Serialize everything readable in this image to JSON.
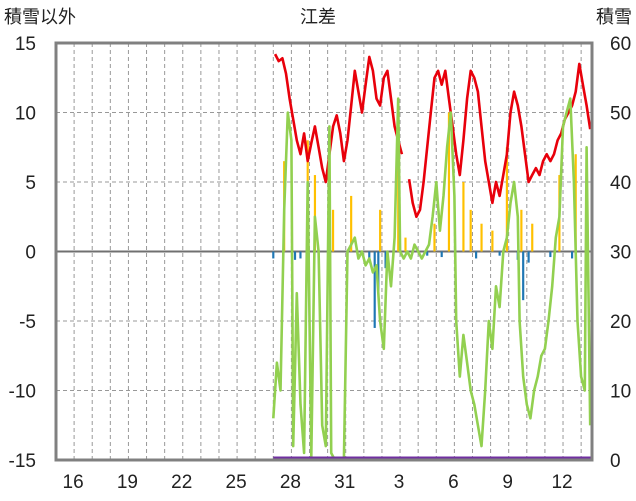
{
  "chart_data": {
    "type": "bar",
    "title": "江差",
    "left_axis_label": "積雪以外",
    "right_axis_label": "積雪",
    "left_ylim": [
      -15,
      15
    ],
    "left_yticks": [
      15,
      10,
      5,
      0,
      -5,
      -10,
      -15
    ],
    "right_ylim": [
      0,
      60
    ],
    "right_yticks": [
      60,
      50,
      40,
      30,
      20,
      10,
      0
    ],
    "x_tick_labels": [
      "16",
      "19",
      "22",
      "25",
      "28",
      "31",
      "3",
      "6",
      "9",
      "12"
    ],
    "x_tick_day_index": [
      1,
      4,
      7,
      10,
      13,
      16,
      19,
      22,
      25,
      28
    ],
    "x_range_days": [
      0,
      29.6
    ],
    "grid": true,
    "colors": {
      "temperature": "#e8000b",
      "snow_depth": "#92d050",
      "precipitation": "#ffc000",
      "negative": "#1f77b4",
      "baseline": "#7030a0",
      "grid": "#999999",
      "frame": "#808080"
    },
    "series": [
      {
        "axis": "left",
        "style": "line",
        "color": "#e8000b",
        "points": [
          [
            12.1,
            14.2
          ],
          [
            12.3,
            13.7
          ],
          [
            12.5,
            13.9
          ],
          [
            12.7,
            12.8
          ],
          [
            12.9,
            11.0
          ],
          [
            13.1,
            9.5
          ],
          [
            13.3,
            8.0
          ],
          [
            13.5,
            7.0
          ],
          [
            13.7,
            8.5
          ],
          [
            13.9,
            6.5
          ],
          [
            14.1,
            7.8
          ],
          [
            14.3,
            9.0
          ],
          [
            14.5,
            7.5
          ],
          [
            14.7,
            6.0
          ],
          [
            14.9,
            5.0
          ],
          [
            15.1,
            7.0
          ],
          [
            15.3,
            9.0
          ],
          [
            15.5,
            9.8
          ],
          [
            15.7,
            8.5
          ],
          [
            15.9,
            6.5
          ],
          [
            16.1,
            8.0
          ],
          [
            16.3,
            10.5
          ],
          [
            16.5,
            13.0
          ],
          [
            16.7,
            11.5
          ],
          [
            16.9,
            10.0
          ],
          [
            17.1,
            12.0
          ],
          [
            17.3,
            14.0
          ],
          [
            17.5,
            13.0
          ],
          [
            17.7,
            11.0
          ],
          [
            17.9,
            10.5
          ],
          [
            18.1,
            12.5
          ],
          [
            18.3,
            13.0
          ],
          [
            18.5,
            11.0
          ],
          [
            18.7,
            9.0
          ],
          [
            18.9,
            8.0
          ],
          [
            19.1,
            7.0
          ]
        ]
      },
      {
        "axis": "left",
        "style": "line",
        "color": "#e8000b",
        "points": [
          [
            19.5,
            5.2
          ],
          [
            19.7,
            3.5
          ],
          [
            19.9,
            2.5
          ],
          [
            20.1,
            3.0
          ],
          [
            20.3,
            5.0
          ],
          [
            20.5,
            7.5
          ],
          [
            20.7,
            10.0
          ],
          [
            20.9,
            12.5
          ],
          [
            21.1,
            13.0
          ],
          [
            21.3,
            12.0
          ],
          [
            21.5,
            13.0
          ],
          [
            21.7,
            11.0
          ],
          [
            21.9,
            9.0
          ],
          [
            22.1,
            7.0
          ],
          [
            22.3,
            5.5
          ],
          [
            22.5,
            8.0
          ],
          [
            22.7,
            11.0
          ],
          [
            22.9,
            13.0
          ],
          [
            23.1,
            12.5
          ],
          [
            23.3,
            11.5
          ],
          [
            23.5,
            9.0
          ],
          [
            23.7,
            6.5
          ],
          [
            23.9,
            5.0
          ],
          [
            24.1,
            3.5
          ],
          [
            24.3,
            5.0
          ],
          [
            24.5,
            4.0
          ],
          [
            24.7,
            5.5
          ],
          [
            24.9,
            7.0
          ],
          [
            25.1,
            10.0
          ],
          [
            25.3,
            11.5
          ],
          [
            25.5,
            10.5
          ],
          [
            25.7,
            9.0
          ],
          [
            25.9,
            7.0
          ],
          [
            26.1,
            5.0
          ],
          [
            26.3,
            5.5
          ],
          [
            26.5,
            6.0
          ],
          [
            26.7,
            5.5
          ],
          [
            26.9,
            6.5
          ],
          [
            27.1,
            7.0
          ],
          [
            27.3,
            6.5
          ],
          [
            27.5,
            7.0
          ],
          [
            27.7,
            8.0
          ],
          [
            27.9,
            8.5
          ],
          [
            28.1,
            9.5
          ],
          [
            28.3,
            10.0
          ],
          [
            28.5,
            10.5
          ],
          [
            28.7,
            11.5
          ],
          [
            28.9,
            13.5
          ],
          [
            29.1,
            12.0
          ],
          [
            29.3,
            10.5
          ],
          [
            29.5,
            8.8
          ]
        ]
      },
      {
        "axis": "right",
        "style": "line",
        "color": "#92d050",
        "points": [
          [
            12.0,
            6.0
          ],
          [
            12.2,
            14.0
          ],
          [
            12.4,
            10.0
          ],
          [
            12.6,
            36.0
          ],
          [
            12.8,
            50.0
          ],
          [
            13.0,
            46.0
          ],
          [
            13.1,
            2.0
          ],
          [
            13.3,
            24.0
          ],
          [
            13.5,
            8.0
          ],
          [
            13.7,
            1.0
          ],
          [
            13.9,
            40.0
          ],
          [
            14.1,
            0.5
          ],
          [
            14.3,
            35.0
          ],
          [
            14.5,
            30.0
          ],
          [
            14.7,
            5.0
          ],
          [
            14.9,
            2.0
          ],
          [
            15.1,
            48.0
          ],
          [
            15.2,
            1.0
          ],
          [
            15.4,
            0.0
          ],
          [
            15.6,
            0.0
          ],
          [
            15.9,
            0.0
          ],
          [
            16.1,
            30.0
          ],
          [
            16.3,
            31.0
          ],
          [
            16.5,
            32.0
          ],
          [
            16.7,
            29.0
          ],
          [
            16.9,
            30.0
          ],
          [
            17.1,
            28.0
          ],
          [
            17.3,
            29.0
          ],
          [
            17.5,
            27.0
          ],
          [
            17.7,
            28.0
          ],
          [
            17.9,
            20.0
          ],
          [
            18.1,
            16.0
          ],
          [
            18.3,
            30.0
          ],
          [
            18.5,
            25.0
          ],
          [
            18.7,
            32.0
          ],
          [
            18.9,
            52.0
          ],
          [
            19.0,
            30.0
          ],
          [
            19.2,
            29.0
          ],
          [
            19.4,
            30.0
          ],
          [
            19.6,
            29.0
          ],
          [
            19.8,
            31.0
          ],
          [
            20.0,
            30.0
          ],
          [
            20.2,
            29.0
          ],
          [
            20.4,
            30.0
          ],
          [
            20.6,
            31.0
          ],
          [
            20.8,
            35.0
          ],
          [
            21.0,
            40.0
          ],
          [
            21.2,
            33.0
          ],
          [
            21.4,
            38.0
          ],
          [
            21.6,
            45.0
          ],
          [
            21.8,
            50.0
          ],
          [
            22.0,
            38.0
          ],
          [
            22.1,
            20.0
          ],
          [
            22.3,
            12.0
          ],
          [
            22.5,
            18.0
          ],
          [
            22.7,
            14.0
          ],
          [
            22.9,
            10.0
          ],
          [
            23.1,
            8.0
          ],
          [
            23.3,
            5.0
          ],
          [
            23.5,
            2.0
          ],
          [
            23.7,
            10.0
          ],
          [
            23.9,
            20.0
          ],
          [
            24.1,
            16.0
          ],
          [
            24.3,
            25.0
          ],
          [
            24.5,
            22.0
          ],
          [
            24.7,
            30.0
          ],
          [
            24.9,
            32.0
          ],
          [
            25.1,
            37.0
          ],
          [
            25.3,
            40.0
          ],
          [
            25.5,
            35.0
          ],
          [
            25.6,
            20.0
          ],
          [
            25.8,
            12.0
          ],
          [
            26.0,
            8.0
          ],
          [
            26.2,
            6.0
          ],
          [
            26.4,
            10.0
          ],
          [
            26.6,
            12.0
          ],
          [
            26.8,
            15.0
          ],
          [
            27.0,
            16.0
          ],
          [
            27.2,
            20.0
          ],
          [
            27.4,
            25.0
          ],
          [
            27.6,
            32.0
          ],
          [
            27.8,
            35.0
          ],
          [
            28.0,
            48.0
          ],
          [
            28.2,
            50.0
          ],
          [
            28.4,
            52.0
          ],
          [
            28.6,
            40.0
          ],
          [
            28.8,
            20.0
          ],
          [
            29.0,
            12.0
          ],
          [
            29.2,
            10.0
          ],
          [
            29.3,
            45.0
          ],
          [
            29.5,
            5.0
          ]
        ]
      }
    ],
    "bars": [
      {
        "axis": "left",
        "color": "#ffc000",
        "style": "positive",
        "items": [
          [
            12.6,
            6.5
          ],
          [
            13.9,
            8.0
          ],
          [
            14.3,
            5.5
          ],
          [
            15.3,
            3.0
          ],
          [
            16.3,
            4.0
          ],
          [
            17.9,
            3.0
          ],
          [
            18.9,
            10.0
          ],
          [
            19.3,
            1.0
          ],
          [
            20.9,
            2.0
          ],
          [
            21.7,
            10.0
          ],
          [
            22.5,
            5.0
          ],
          [
            22.9,
            3.0
          ],
          [
            23.5,
            2.0
          ],
          [
            24.1,
            1.5
          ],
          [
            24.9,
            7.5
          ],
          [
            25.7,
            3.0
          ],
          [
            26.3,
            2.0
          ],
          [
            27.8,
            5.5
          ],
          [
            28.7,
            7.0
          ]
        ]
      },
      {
        "axis": "left",
        "color": "#1f77b4",
        "style": "negative",
        "items": [
          [
            12.0,
            -0.5
          ],
          [
            13.2,
            -0.6
          ],
          [
            13.5,
            -0.5
          ],
          [
            17.3,
            -0.7
          ],
          [
            17.6,
            -5.5
          ],
          [
            17.8,
            -3.0
          ],
          [
            18.2,
            -1.2
          ],
          [
            20.5,
            -0.3
          ],
          [
            21.3,
            -0.4
          ],
          [
            23.2,
            -0.5
          ],
          [
            24.5,
            -0.3
          ],
          [
            25.5,
            -0.6
          ],
          [
            25.8,
            -3.5
          ],
          [
            26.1,
            -0.8
          ],
          [
            27.3,
            -0.4
          ],
          [
            28.5,
            -0.5
          ]
        ]
      }
    ],
    "baseline_band": {
      "axis": "right",
      "x": [
        12.0,
        29.6
      ],
      "value": 0
    }
  }
}
